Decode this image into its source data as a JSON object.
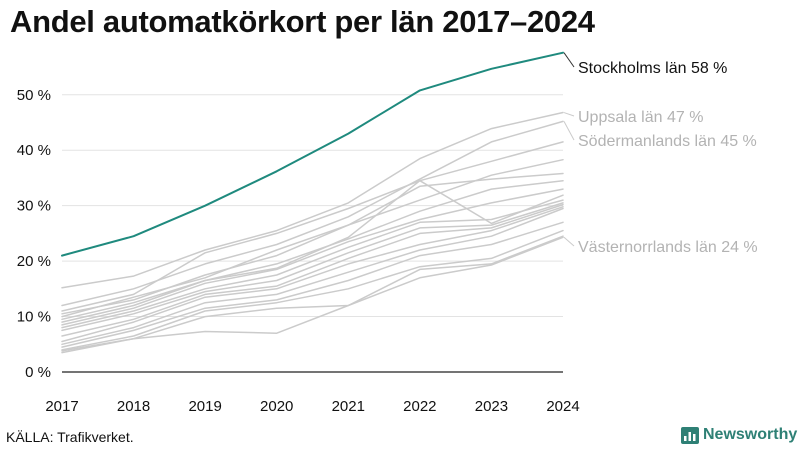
{
  "title": "Andel automatkörkort per län 2017–2024",
  "source": "KÄLLA: Trafikverket.",
  "brand": {
    "name": "Newsworthy"
  },
  "colors": {
    "highlight": "#1f8a7e",
    "muted": "#cbcbcb",
    "muted_label": "#b3b3b3",
    "brand": "#2e8075"
  },
  "chart_data": {
    "type": "line",
    "x": [
      2017,
      2018,
      2019,
      2020,
      2021,
      2022,
      2023,
      2024
    ],
    "ylim": [
      0,
      57
    ],
    "yticks": [
      0,
      10,
      20,
      30,
      40,
      50
    ],
    "ytick_labels": [
      "0 %",
      "10 %",
      "20 %",
      "30 %",
      "40 %",
      "50 %"
    ],
    "xtick_labels": [
      "2017",
      "2018",
      "2019",
      "2020",
      "2021",
      "2022",
      "2023",
      "2024"
    ],
    "grid": true,
    "series": [
      {
        "name": "Stockholms län",
        "label": "Stockholms län 58 %",
        "highlight": true,
        "values": [
          21,
          24.5,
          30,
          36.2,
          43,
          50.8,
          54.7,
          57.6
        ]
      },
      {
        "name": "Uppsala län",
        "label": "Uppsala län 47 %",
        "highlight": false,
        "values": [
          15.2,
          17.3,
          22,
          25.5,
          30.5,
          38.5,
          43.9,
          46.8
        ]
      },
      {
        "name": "Södermanlands län",
        "label": "Södermanlands län 45 %",
        "highlight": false,
        "values": [
          12,
          15,
          19.5,
          23,
          28,
          34.8,
          41.5,
          45.2
        ]
      },
      {
        "name": "Västernorrlands län",
        "label": "Västernorrlands län 24 %",
        "highlight": false,
        "values": [
          3.8,
          6,
          7.3,
          7,
          12,
          17,
          19.3,
          24.3
        ]
      },
      {
        "values": [
          11,
          14,
          21.5,
          25,
          29.5,
          34.5,
          38,
          41.5
        ]
      },
      {
        "values": [
          10.5,
          13,
          17.5,
          21,
          26.5,
          31,
          35.5,
          38.3
        ]
      },
      {
        "values": [
          10,
          13.5,
          17,
          22,
          26.5,
          33.5,
          34.8,
          35.8
        ]
      },
      {
        "values": [
          9.5,
          12.5,
          16.5,
          19.5,
          24,
          29,
          33,
          34.5
        ]
      },
      {
        "values": [
          9,
          12,
          16.5,
          18.7,
          24.3,
          34.5,
          26.8,
          31.9
        ]
      },
      {
        "values": [
          8.5,
          11.5,
          16,
          18.5,
          23.5,
          27.5,
          30.5,
          33
        ]
      },
      {
        "values": [
          8,
          11,
          15,
          17.5,
          22.5,
          27,
          27.5,
          31
        ]
      },
      {
        "values": [
          7.5,
          10.5,
          14.5,
          16.5,
          21.5,
          26,
          26.5,
          30.5
        ]
      },
      {
        "values": [
          6.5,
          9.5,
          14,
          15.5,
          20.5,
          25,
          26,
          30.2
        ]
      },
      {
        "values": [
          5.5,
          9,
          13.5,
          15,
          19.5,
          23,
          25.5,
          29.8
        ]
      },
      {
        "values": [
          5,
          8,
          12.5,
          14,
          18,
          22,
          24.5,
          29.5
        ]
      },
      {
        "values": [
          4.5,
          7.5,
          11.5,
          13,
          16.5,
          21,
          23,
          27
        ]
      },
      {
        "values": [
          4,
          6.5,
          11,
          12.5,
          15,
          19,
          20.5,
          25.5
        ]
      },
      {
        "values": [
          3.5,
          6,
          10,
          11.5,
          12,
          18.5,
          19.5,
          24.5
        ]
      }
    ]
  }
}
